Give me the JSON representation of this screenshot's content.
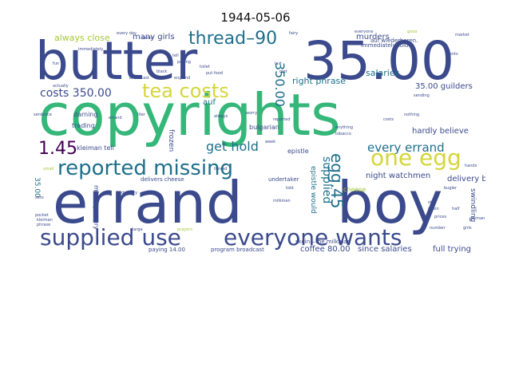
{
  "title": "1944-05-06",
  "words": {
    "butter": "butter",
    "n35": "35.00",
    "copyrights": "copyrights",
    "errand": "errand",
    "boy": "boy",
    "supplied_use": "supplied use",
    "everyone_wants": "everyone wants",
    "reported_missing": "reported missing",
    "one_egg": "one egg",
    "tea_costs": "tea costs",
    "thread90": "thread–90",
    "n145": "1.45",
    "costs350": "costs 350.00",
    "get_hold": "get hold",
    "every_errand": "every errand",
    "always_close": "always close",
    "many_girls": "many girls",
    "murders": "murders",
    "salaries": "salaries",
    "right_phrase": "right phrase",
    "g35": "35.00 guilders",
    "night_watchmen": "night watchmen",
    "delivery_boy": "delivery boy",
    "hardly_believe": "hardly believe",
    "coffee80": "coffee 80.00",
    "since_salaries": "since salaries",
    "full_trying": "full trying",
    "program_broadcast": "program broadcast",
    "paying": "paying 14.00",
    "auf": "auf",
    "bulgarian": "bulgarian",
    "epistle": "epistle",
    "supplied": "supplied",
    "egg45": "egg.45",
    "n350v": "350.00",
    "darning": "darning",
    "kleiman_tell": "kleiman tell",
    "trading": "trading",
    "frozen": "frozen",
    "immediately_told": "immediately told",
    "wiederhoren": "auf wiederhoren.",
    "skein": "skein—the milkman",
    "swindling": "swindling",
    "missing_every": "missing every",
    "delivers_cheese": "delivers cheese",
    "undertaker": "undertaker",
    "cheese": "cheese",
    "n3500v": "35.00",
    "epistle_would": "epistle would",
    "tiny": [
      "every day",
      "cents",
      "fairy",
      "everyone",
      "good",
      "market",
      "england",
      "broadcast",
      "black",
      "toilet",
      "put food",
      "paying",
      "tell",
      "last",
      "rest",
      "fun",
      "actually",
      "immediately",
      "small",
      "zero",
      "german",
      "hands",
      "girls",
      "pocket",
      "kleiman",
      "phrase",
      "delivery",
      "stay",
      "raisin",
      "half",
      "worry",
      "told",
      "reported",
      "week",
      "tobacco",
      "always",
      "anything",
      "sentence",
      "liter",
      "costs",
      "bugler",
      "prices",
      "thread",
      "errand",
      "milkman",
      "prayers",
      "sending",
      "nothing",
      "cents",
      "large",
      "number"
    ]
  }
}
